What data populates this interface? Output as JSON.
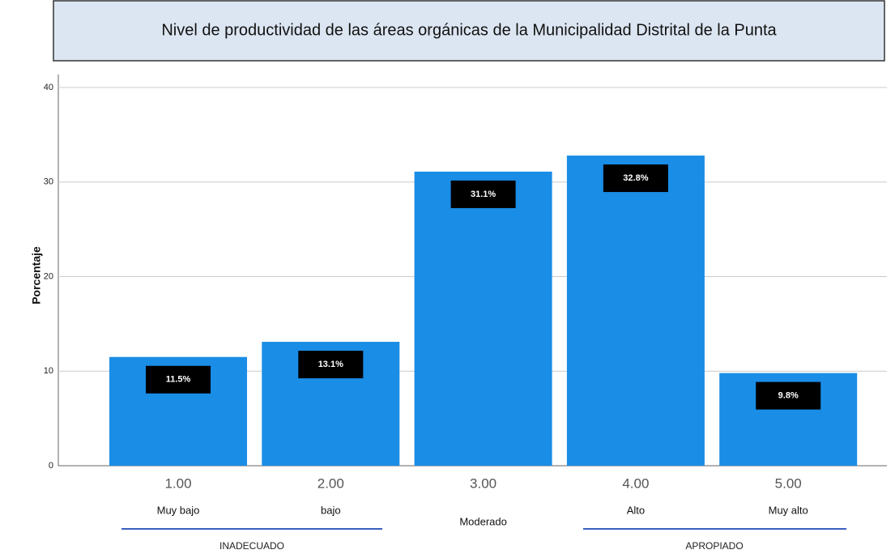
{
  "chart_data": {
    "type": "bar",
    "title": "Nivel de productividad de las áreas orgánicas de la Municipalidad Distrital de la Punta",
    "ylabel": "Porcentaje",
    "categories": [
      "1.00",
      "2.00",
      "3.00",
      "4.00",
      "5.00"
    ],
    "level_labels": [
      "Muy bajo",
      "bajo",
      "Moderado",
      "Alto",
      "Muy alto"
    ],
    "groups": [
      "INADECUADO",
      "APROPIADO"
    ],
    "values": [
      11.5,
      13.1,
      31.1,
      32.8,
      9.8
    ],
    "value_labels": [
      "11.5%",
      "13.1%",
      "31.1%",
      "32.8%",
      "9.8%"
    ],
    "color": "#1a8de6",
    "ylim": [
      0,
      40
    ],
    "yticks": [
      0,
      10,
      20,
      30,
      40
    ],
    "grid": true
  }
}
